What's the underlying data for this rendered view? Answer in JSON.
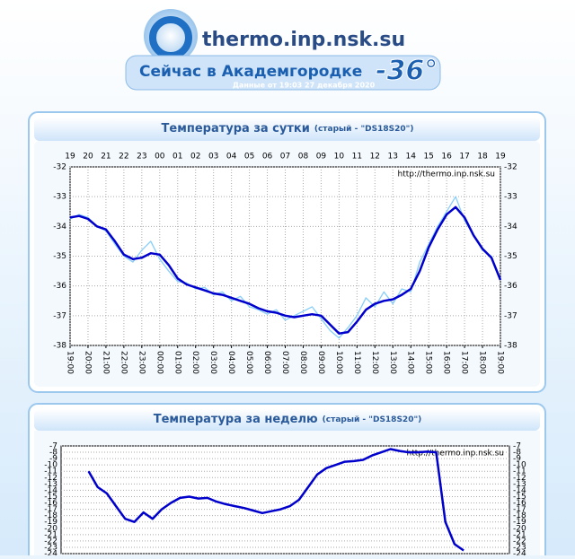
{
  "header": {
    "site": "thermo.inp.nsk.su",
    "banner": "Сейчас в Академгородке",
    "temperature": "-36°",
    "updated": "Данные от 19:03 27 декабря 2020"
  },
  "chart_data": [
    {
      "type": "line",
      "title": "Температура за сутки",
      "subtitle": "(старый - \"DS18S20\")",
      "annotation": "http://thermo.inp.nsk.su",
      "x": [
        0,
        0.5,
        1,
        1.5,
        2,
        2.5,
        3,
        3.5,
        4,
        4.5,
        5,
        5.5,
        6,
        6.5,
        7,
        7.5,
        8,
        8.5,
        9,
        9.5,
        10,
        10.5,
        11,
        11.5,
        12,
        12.5,
        13,
        13.5,
        14,
        14.5,
        15,
        15.5,
        16,
        16.5,
        17,
        17.5,
        18,
        18.5,
        19,
        19.5,
        20,
        20.5,
        21,
        21.5,
        22,
        22.5,
        23,
        23.5,
        24
      ],
      "series": [
        {
          "color": "#87cefa",
          "values": [
            -33.75,
            -33.6,
            -33.7,
            -34.0,
            -34.15,
            -34.6,
            -35.0,
            -35.2,
            -34.8,
            -34.5,
            -35.1,
            -35.5,
            -35.85,
            -35.9,
            -36.1,
            -36.05,
            -36.3,
            -36.2,
            -36.5,
            -36.35,
            -36.7,
            -36.8,
            -36.95,
            -36.8,
            -37.15,
            -37.0,
            -36.85,
            -36.7,
            -37.1,
            -37.5,
            -37.75,
            -37.4,
            -37.0,
            -36.4,
            -36.7,
            -36.2,
            -36.6,
            -36.1,
            -36.2,
            -35.2,
            -34.6,
            -34.0,
            -33.5,
            -33.0,
            -33.8,
            -34.3,
            -34.8,
            -35.0,
            -35.8
          ]
        },
        {
          "color": "#0000cc",
          "values": [
            -33.7,
            -33.65,
            -33.75,
            -34.0,
            -34.1,
            -34.5,
            -34.95,
            -35.1,
            -35.05,
            -34.9,
            -34.95,
            -35.3,
            -35.75,
            -35.95,
            -36.05,
            -36.15,
            -36.25,
            -36.3,
            -36.4,
            -36.5,
            -36.6,
            -36.75,
            -36.85,
            -36.9,
            -37.0,
            -37.05,
            -37.0,
            -36.95,
            -37.0,
            -37.3,
            -37.6,
            -37.55,
            -37.2,
            -36.8,
            -36.6,
            -36.5,
            -36.45,
            -36.3,
            -36.1,
            -35.5,
            -34.7,
            -34.1,
            -33.6,
            -33.35,
            -33.7,
            -34.3,
            -34.75,
            -35.05,
            -35.8
          ]
        }
      ],
      "xlim": [
        0,
        24
      ],
      "ylim": [
        -38,
        -32
      ],
      "yticks": [
        -32,
        -33,
        -34,
        -35,
        -36,
        -37,
        -38
      ],
      "grid": true,
      "xticks": [
        {
          "value": 0,
          "label": "19"
        },
        {
          "value": 1,
          "label": "20"
        },
        {
          "value": 2,
          "label": "21"
        },
        {
          "value": 3,
          "label": "22"
        },
        {
          "value": 4,
          "label": "23"
        },
        {
          "value": 5,
          "label": "00"
        },
        {
          "value": 6,
          "label": "01"
        },
        {
          "value": 7,
          "label": "02"
        },
        {
          "value": 8,
          "label": "03"
        },
        {
          "value": 9,
          "label": "04"
        },
        {
          "value": 10,
          "label": "05"
        },
        {
          "value": 11,
          "label": "06"
        },
        {
          "value": 12,
          "label": "07"
        },
        {
          "value": 13,
          "label": "08"
        },
        {
          "value": 14,
          "label": "09"
        },
        {
          "value": 15,
          "label": "10"
        },
        {
          "value": 16,
          "label": "11"
        },
        {
          "value": 17,
          "label": "12"
        },
        {
          "value": 18,
          "label": "13"
        },
        {
          "value": 19,
          "label": "14"
        },
        {
          "value": 20,
          "label": "15"
        },
        {
          "value": 21,
          "label": "16"
        },
        {
          "value": 22,
          "label": "17"
        },
        {
          "value": 23,
          "label": "18"
        },
        {
          "value": 24,
          "label": "19"
        }
      ],
      "xticks_bottom": [
        {
          "value": 0,
          "label": "19:00"
        },
        {
          "value": 1,
          "label": "20:00"
        },
        {
          "value": 2,
          "label": "21:00"
        },
        {
          "value": 3,
          "label": "22:00"
        },
        {
          "value": 4,
          "label": "23:00"
        },
        {
          "value": 5,
          "label": "00:00"
        },
        {
          "value": 6,
          "label": "01:00"
        },
        {
          "value": 7,
          "label": "02:00"
        },
        {
          "value": 8,
          "label": "03:00"
        },
        {
          "value": 9,
          "label": "04:00"
        },
        {
          "value": 10,
          "label": "05:00"
        },
        {
          "value": 11,
          "label": "06:00"
        },
        {
          "value": 12,
          "label": "07:00"
        },
        {
          "value": 13,
          "label": "08:00"
        },
        {
          "value": 14,
          "label": "09:00"
        },
        {
          "value": 15,
          "label": "10:00"
        },
        {
          "value": 16,
          "label": "11:00"
        },
        {
          "value": 17,
          "label": "12:00"
        },
        {
          "value": 18,
          "label": "13:00"
        },
        {
          "value": 19,
          "label": "14:00"
        },
        {
          "value": 20,
          "label": "15:00"
        },
        {
          "value": 21,
          "label": "16:00"
        },
        {
          "value": 22,
          "label": "17:00"
        },
        {
          "value": 23,
          "label": "18:00"
        },
        {
          "value": 24,
          "label": "19:00"
        }
      ]
    },
    {
      "type": "line",
      "title": "Температура за неделю",
      "subtitle": "(старый - \"DS18S20\")",
      "annotation": "http://thermo.inp.nsk.su",
      "series": [
        {
          "color": "#0000cc",
          "values": [
            null,
            null,
            null,
            -11,
            -13.5,
            -14.5,
            -16.5,
            -18.5,
            -19,
            -17.5,
            -18.5,
            -17,
            -16,
            -15.2,
            -15,
            -15.3,
            -15.2,
            -15.8,
            -16.2,
            -16.5,
            -16.8,
            -17.2,
            -17.6,
            -17.3,
            -17,
            -16.5,
            -15.5,
            -13.5,
            -11.5,
            -10.5,
            -10,
            -9.5,
            -9.4,
            -9.2,
            -8.5,
            -8,
            -7.5,
            -7.8,
            -8,
            -8,
            -7.9,
            -8,
            -19,
            -22.5,
            -23.5,
            null,
            null,
            null,
            null,
            null
          ]
        }
      ],
      "ylim": [
        -24,
        -7
      ],
      "yticks": [
        -7,
        -8,
        -9,
        -10,
        -11,
        -12,
        -13,
        -14,
        -15,
        -16,
        -17,
        -18,
        -19,
        -20,
        -21,
        -22,
        -23,
        -24
      ],
      "grid": true
    }
  ]
}
